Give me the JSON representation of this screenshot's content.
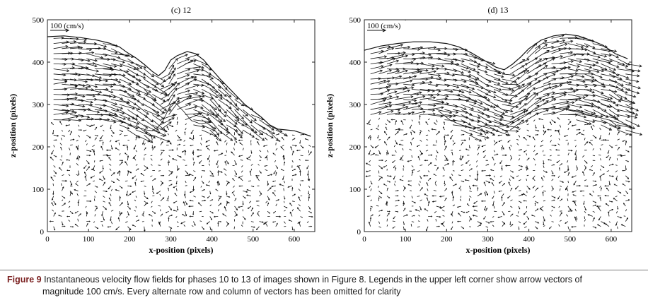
{
  "chart_data": [
    {
      "type": "quiver",
      "title": "(c) 12",
      "xlabel": "x-position (pixels)",
      "ylabel": "z-position (pixels)",
      "xlim": [
        0,
        650
      ],
      "ylim": [
        0,
        500
      ],
      "xticks": [
        "0",
        "100",
        "200",
        "300",
        "400",
        "500",
        "600"
      ],
      "yticks": [
        "0",
        "100",
        "200",
        "300",
        "400",
        "500"
      ],
      "legend_label": "100 (cm/s)",
      "legend_magnitude_cms": 100,
      "free_surface": [
        [
          0,
          460
        ],
        [
          40,
          462
        ],
        [
          80,
          458
        ],
        [
          120,
          452
        ],
        [
          150,
          445
        ],
        [
          175,
          436
        ],
        [
          195,
          422
        ],
        [
          215,
          410
        ],
        [
          235,
          395
        ],
        [
          255,
          378
        ],
        [
          270,
          368
        ],
        [
          285,
          380
        ],
        [
          300,
          405
        ],
        [
          315,
          415
        ],
        [
          340,
          425
        ],
        [
          360,
          420
        ],
        [
          380,
          405
        ],
        [
          400,
          382
        ],
        [
          420,
          360
        ],
        [
          440,
          340
        ],
        [
          460,
          320
        ],
        [
          480,
          300
        ],
        [
          500,
          285
        ],
        [
          520,
          270
        ],
        [
          540,
          252
        ],
        [
          560,
          242
        ],
        [
          580,
          240
        ],
        [
          600,
          238
        ],
        [
          620,
          232
        ],
        [
          640,
          225
        ]
      ],
      "trough_surface": [
        [
          150,
          275
        ],
        [
          175,
          262
        ],
        [
          200,
          252
        ],
        [
          220,
          246
        ],
        [
          240,
          240
        ],
        [
          255,
          238
        ],
        [
          270,
          248
        ],
        [
          280,
          260
        ],
        [
          290,
          280
        ],
        [
          300,
          300
        ],
        [
          310,
          305
        ],
        [
          330,
          285
        ],
        [
          350,
          262
        ],
        [
          370,
          255
        ],
        [
          400,
          258
        ]
      ]
    },
    {
      "type": "quiver",
      "title": "(d) 13",
      "xlabel": "x-position (pixels)",
      "ylabel": "z-position (pixels)",
      "xlim": [
        0,
        650
      ],
      "ylim": [
        0,
        500
      ],
      "xticks": [
        "0",
        "100",
        "200",
        "300",
        "400",
        "500",
        "600"
      ],
      "yticks": [
        "0",
        "100",
        "200",
        "300",
        "400",
        "500"
      ],
      "legend_label": "100 (cm/s)",
      "legend_magnitude_cms": 100,
      "free_surface": [
        [
          0,
          428
        ],
        [
          40,
          438
        ],
        [
          80,
          444
        ],
        [
          120,
          448
        ],
        [
          160,
          448
        ],
        [
          200,
          444
        ],
        [
          230,
          436
        ],
        [
          260,
          422
        ],
        [
          290,
          405
        ],
        [
          320,
          388
        ],
        [
          340,
          382
        ],
        [
          360,
          395
        ],
        [
          380,
          412
        ],
        [
          400,
          432
        ],
        [
          430,
          452
        ],
        [
          460,
          462
        ],
        [
          490,
          466
        ],
        [
          520,
          462
        ],
        [
          550,
          452
        ],
        [
          580,
          440
        ],
        [
          610,
          420
        ],
        [
          640,
          408
        ]
      ],
      "trough_surface": [
        [
          180,
          285
        ],
        [
          210,
          262
        ],
        [
          240,
          250
        ],
        [
          260,
          244
        ],
        [
          280,
          246
        ],
        [
          300,
          252
        ],
        [
          320,
          248
        ],
        [
          340,
          250
        ],
        [
          360,
          260
        ],
        [
          380,
          272
        ],
        [
          400,
          280
        ],
        [
          430,
          290
        ],
        [
          460,
          292
        ],
        [
          490,
          288
        ],
        [
          520,
          282
        ],
        [
          560,
          272
        ],
        [
          600,
          262
        ],
        [
          640,
          250
        ]
      ]
    }
  ],
  "caption": {
    "label": "Figure 9",
    "line1": " Instantaneous velocity flow fields for phases 10 to 13 of images shown in Figure 8. Legends in the upper left corner show arrow vectors of",
    "line2": "magnitude 100 cm/s. Every alternate row and column of vectors has been omitted for clarity"
  }
}
